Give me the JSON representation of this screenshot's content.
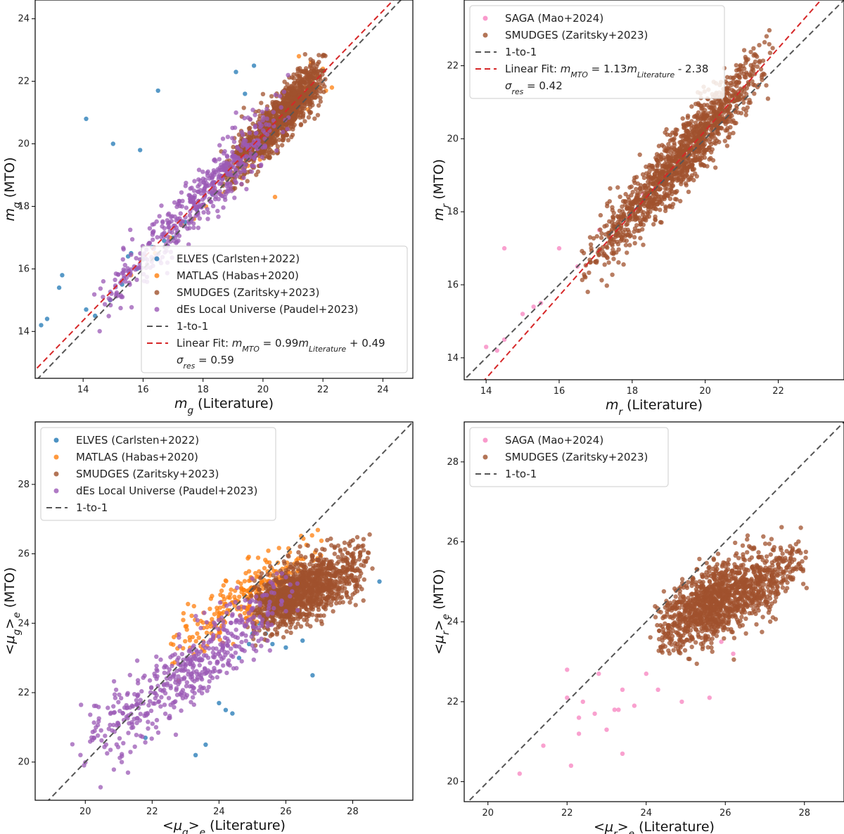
{
  "chart_data": [
    {
      "type": "scatter",
      "panel": "top-left",
      "xlabel": "m_g (Literature)",
      "ylabel": "m_g (MTO)",
      "xlim": [
        12.4,
        25.0
      ],
      "ylim": [
        12.5,
        24.6
      ],
      "xticks": [
        14,
        16,
        18,
        20,
        22,
        24
      ],
      "yticks": [
        14,
        16,
        18,
        20,
        22,
        24
      ],
      "grid": false,
      "legend_position": "lower-right",
      "series": [
        {
          "name": "ELVES (Carlsten+2022)",
          "color": "#1f77b4",
          "x": [
            12.6,
            12.8,
            13.2,
            13.3,
            14.1,
            14.1,
            14.4,
            14.9,
            15.0,
            15.3,
            15.5,
            15.6,
            15.8,
            15.9,
            16.0,
            16.3,
            16.5,
            16.7,
            17.0,
            17.4,
            17.8,
            18.3,
            18.8,
            19.1,
            19.4,
            19.7,
            20.2
          ],
          "y": [
            14.2,
            14.4,
            15.4,
            15.8,
            14.7,
            20.8,
            14.5,
            15.0,
            20.0,
            15.5,
            16.4,
            16.5,
            16.0,
            19.8,
            16.3,
            16.7,
            21.7,
            16.9,
            17.0,
            17.5,
            17.9,
            18.4,
            19.0,
            22.3,
            21.6,
            22.5,
            20.7
          ]
        },
        {
          "name": "MATLAS (Habas+2020)",
          "color": "#ff7f0e",
          "x": [
            15.6,
            16.4,
            16.9,
            17.3,
            17.7,
            18.1,
            18.4,
            18.6,
            18.9,
            19.0,
            19.2,
            19.3,
            19.5,
            19.6,
            19.8,
            19.9,
            20.0,
            20.1,
            20.2,
            20.3,
            20.4,
            20.5,
            20.6,
            20.7,
            20.8,
            20.9,
            21.0,
            21.1,
            21.2,
            21.3,
            21.4,
            21.5,
            21.6,
            21.7,
            21.8,
            21.9,
            22.0,
            22.1,
            22.3,
            21.6,
            21.2,
            20.4
          ],
          "y": [
            15.8,
            16.5,
            17.0,
            17.4,
            17.6,
            18.0,
            18.5,
            18.4,
            19.0,
            18.8,
            19.4,
            18.9,
            19.3,
            20.0,
            19.7,
            19.5,
            20.2,
            19.9,
            20.6,
            20.0,
            20.5,
            20.3,
            21.0,
            20.4,
            20.9,
            21.2,
            20.7,
            21.4,
            21.0,
            21.6,
            21.8,
            21.1,
            22.0,
            21.5,
            22.2,
            21.8,
            22.4,
            21.7,
            21.8,
            22.6,
            22.8,
            18.3
          ]
        }
      ],
      "fit": {
        "slope": 0.99,
        "intercept": 0.49,
        "sigma_res": 0.59,
        "color": "#d62728"
      },
      "legend": [
        "ELVES (Carlsten+2022)",
        "MATLAS (Habas+2020)",
        "SMUDGES (Zaritsky+2023)",
        "dEs Local Universe (Paudel+2023)",
        "1-to-1",
        "Linear Fit: m_MTO = 0.99m_Literature + 0.49",
        "σres = 0.59"
      ],
      "generated_series": [
        {
          "name": "SMUDGES (Zaritsky+2023)",
          "color": "#a0522d",
          "n": 1100,
          "seed": 11,
          "xmin": 18.6,
          "xmax": 22.1,
          "xpeak": 21.0,
          "slope": 0.99,
          "intercept": 0.49,
          "sigma": 0.42
        },
        {
          "name": "dEs Local Universe (Paudel+2023)",
          "color": "#9b59b6",
          "n": 500,
          "seed": 23,
          "xmin": 14.0,
          "xmax": 21.0,
          "xpeak": 18.5,
          "slope": 0.99,
          "intercept": 0.55,
          "sigma": 0.45
        }
      ]
    },
    {
      "type": "scatter",
      "panel": "top-right",
      "xlabel": "m_r (Literature)",
      "ylabel": "m_r (MTO)",
      "xlim": [
        13.4,
        23.8
      ],
      "ylim": [
        13.4,
        23.8
      ],
      "xticks": [
        14,
        16,
        18,
        20,
        22
      ],
      "yticks": [
        14,
        16,
        18,
        20,
        22
      ],
      "grid": false,
      "legend_position": "upper-left",
      "series": [
        {
          "name": "SAGA (Mao+2024)",
          "color": "#f781bf",
          "x": [
            14.0,
            14.3,
            14.5,
            14.5,
            15.0,
            15.3,
            15.5,
            16.0,
            16.5,
            17.1,
            17.7,
            18.0,
            18.3,
            18.5,
            19.0,
            19.4
          ],
          "y": [
            14.3,
            14.2,
            14.5,
            17.0,
            15.2,
            15.4,
            15.5,
            17.0,
            16.5,
            17.5,
            17.8,
            18.0,
            18.5,
            18.9,
            19.1,
            19.6
          ]
        }
      ],
      "fit": {
        "slope": 1.13,
        "intercept": -2.38,
        "sigma_res": 0.42,
        "color": "#d62728"
      },
      "legend": [
        "SAGA (Mao+2024)",
        "SMUDGES (Zaritsky+2023)",
        "1-to-1",
        "Linear Fit: m_MTO = 1.13m_Literature - 2.38",
        "σres = 0.42"
      ],
      "generated_series": [
        {
          "name": "SMUDGES (Zaritsky+2023)",
          "color": "#a0522d",
          "n": 1300,
          "seed": 37,
          "xmin": 16.4,
          "xmax": 21.9,
          "xpeak": 19.6,
          "slope": 1.13,
          "intercept": -2.38,
          "sigma": 0.45
        }
      ]
    },
    {
      "type": "scatter",
      "panel": "bottom-left",
      "xlabel": "<μ_g>_e (Literature)",
      "ylabel": "<μ_g>_e (MTO)",
      "xlim": [
        18.5,
        29.8
      ],
      "ylim": [
        18.9,
        29.8
      ],
      "xticks": [
        20,
        22,
        24,
        26,
        28
      ],
      "yticks": [
        20,
        22,
        24,
        26,
        28
      ],
      "grid": false,
      "legend_position": "upper-left",
      "series": [
        {
          "name": "ELVES (Carlsten+2022)",
          "color": "#1f77b4",
          "x": [
            21.8,
            23.3,
            23.6,
            24.0,
            24.2,
            24.4,
            24.6,
            24.9,
            25.0,
            25.2,
            25.6,
            26.0,
            26.8,
            28.8,
            26.5,
            25.4
          ],
          "y": [
            20.7,
            20.2,
            20.5,
            21.7,
            21.5,
            21.4,
            23.0,
            23.4,
            23.7,
            24.0,
            23.4,
            23.3,
            22.5,
            25.2,
            23.5,
            23.7
          ]
        }
      ],
      "legend": [
        "ELVES (Carlsten+2022)",
        "MATLAS (Habas+2020)",
        "SMUDGES (Zaritsky+2023)",
        "dEs Local Universe (Paudel+2023)",
        "1-to-1"
      ],
      "generated_series": [
        {
          "name": "MATLAS (Habas+2020)",
          "color": "#ff7f0e",
          "n": 260,
          "seed": 41,
          "xmin": 22.2,
          "xmax": 27.2,
          "xpeak": 25.0,
          "slope": 0.6,
          "intercept": 9.8,
          "sigma": 0.45
        },
        {
          "name": "SMUDGES (Zaritsky+2023)",
          "color": "#a0522d",
          "n": 1300,
          "seed": 53,
          "xmin": 24.8,
          "xmax": 28.6,
          "xpeak": 26.1,
          "slope": 0.42,
          "intercept": 13.8,
          "sigma": 0.42
        },
        {
          "name": "dEs Local Universe (Paudel+2023)",
          "color": "#9b59b6",
          "n": 500,
          "seed": 67,
          "xmin": 19.6,
          "xmax": 26.5,
          "xpeak": 23.3,
          "slope": 0.72,
          "intercept": 6.0,
          "sigma": 0.5
        }
      ]
    },
    {
      "type": "scatter",
      "panel": "bottom-right",
      "xlabel": "<μ_r>_e (Literature)",
      "ylabel": "<μ_r>_e (MTO)",
      "xlim": [
        19.4,
        29.0
      ],
      "ylim": [
        19.5,
        29.0
      ],
      "xticks": [
        20,
        22,
        24,
        26,
        28
      ],
      "yticks": [
        20,
        22,
        24,
        26,
        28
      ],
      "grid": false,
      "legend_position": "upper-left",
      "series": [
        {
          "name": "SAGA (Mao+2024)",
          "color": "#f781bf",
          "x": [
            20.8,
            21.4,
            22.0,
            22.0,
            22.1,
            22.3,
            22.3,
            22.4,
            22.7,
            22.8,
            23.0,
            23.2,
            23.3,
            23.4,
            23.4,
            23.7,
            24.0,
            24.3,
            24.9,
            25.6,
            25.9,
            26.2
          ],
          "y": [
            20.2,
            20.9,
            22.8,
            22.1,
            20.4,
            21.6,
            21.2,
            22.0,
            21.7,
            22.7,
            21.3,
            21.8,
            21.8,
            22.3,
            20.7,
            21.9,
            22.7,
            22.3,
            22.0,
            22.1,
            23.5,
            23.2
          ]
        }
      ],
      "legend": [
        "SAGA (Mao+2024)",
        "SMUDGES (Zaritsky+2023)",
        "1-to-1"
      ],
      "generated_series": [
        {
          "name": "SMUDGES (Zaritsky+2023)",
          "color": "#a0522d",
          "n": 1300,
          "seed": 79,
          "xmin": 24.1,
          "xmax": 28.2,
          "xpeak": 25.6,
          "slope": 0.45,
          "intercept": 12.9,
          "sigma": 0.42
        }
      ]
    }
  ]
}
